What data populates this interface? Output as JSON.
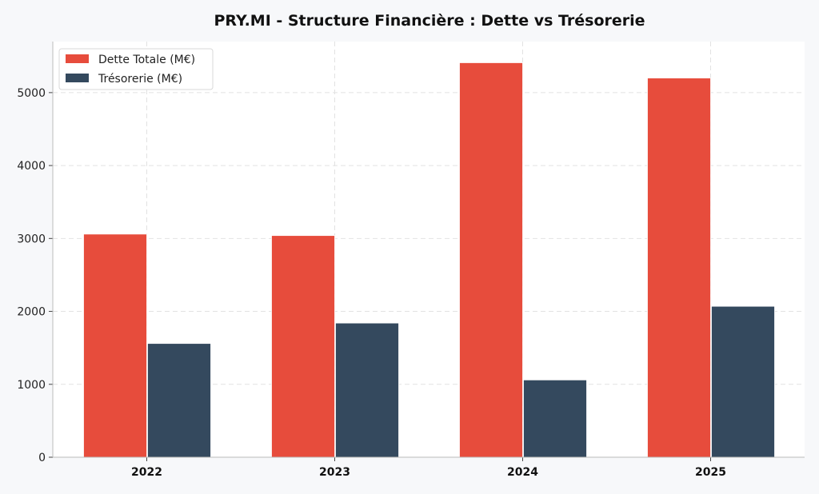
{
  "colors": {
    "background": "#f7f8fa",
    "plot_background": "#ffffff",
    "grid": "#e2e2e2",
    "axis": "#bbbbbb",
    "dette": "#e74c3c",
    "tresorerie": "#34495e"
  },
  "chart_data": {
    "type": "bar",
    "title": "PRY.MI - Structure Financière : Dette vs Trésorerie",
    "xlabel": "",
    "ylabel": "",
    "categories": [
      "2022",
      "2023",
      "2024",
      "2025"
    ],
    "series": [
      {
        "name": "Dette Totale (M€)",
        "color": "#e74c3c",
        "values": [
          3060,
          3040,
          5410,
          5200
        ]
      },
      {
        "name": "Trésorerie (M€)",
        "color": "#34495e",
        "values": [
          1560,
          1840,
          1060,
          2070
        ]
      }
    ],
    "yticks": [
      0,
      1000,
      2000,
      3000,
      4000,
      5000
    ],
    "ylim": [
      0,
      5700
    ],
    "grid": true,
    "legend_position": "top-left"
  }
}
